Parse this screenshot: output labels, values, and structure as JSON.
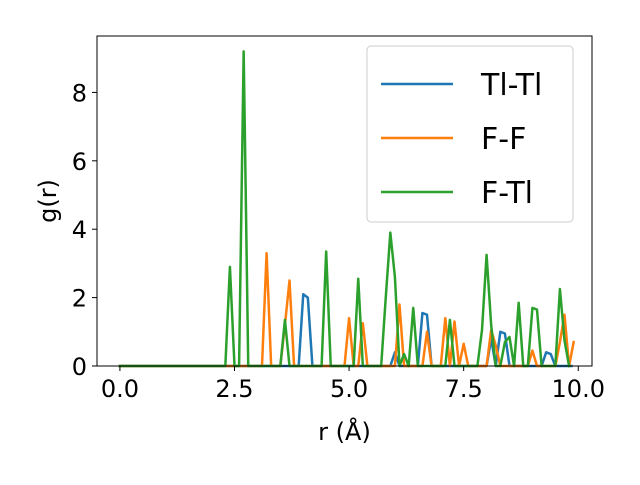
{
  "chart_data": {
    "type": "line",
    "title": "",
    "xlabel": "r (Å)",
    "ylabel": "g(r)",
    "xlim": [
      -0.5,
      10.3
    ],
    "ylim": [
      0,
      9.65
    ],
    "xticks": [
      0.0,
      2.5,
      5.0,
      7.5,
      10.0
    ],
    "xtick_labels": [
      "0.0",
      "2.5",
      "5.0",
      "7.5",
      "10.0"
    ],
    "yticks": [
      0,
      2,
      4,
      6,
      8
    ],
    "ytick_labels": [
      "0",
      "2",
      "4",
      "6",
      "8"
    ],
    "grid": false,
    "legend_position": "top-right",
    "series": [
      {
        "name": "Tl-Tl",
        "color": "#1f77b4",
        "x": [
          0.0,
          3.9,
          4.0,
          4.1,
          4.2,
          4.3,
          5.9,
          6.0,
          6.1,
          6.2,
          6.5,
          6.6,
          6.7,
          6.8,
          8.0,
          8.1,
          8.2,
          8.3,
          8.4,
          8.5,
          8.6,
          8.7,
          9.1,
          9.2,
          9.3,
          9.4,
          9.5,
          9.6,
          9.7,
          9.85
        ],
        "y": [
          0,
          0,
          2.1,
          2.0,
          0,
          0,
          0,
          0.4,
          0,
          0,
          0,
          1.55,
          1.5,
          0,
          0,
          0.8,
          0,
          1.0,
          0.95,
          0,
          0,
          0,
          0,
          0,
          0.4,
          0.35,
          0,
          0,
          0,
          0
        ]
      },
      {
        "name": "F-F",
        "color": "#ff7f0e",
        "x": [
          0.0,
          3.1,
          3.2,
          3.3,
          3.5,
          3.6,
          3.7,
          3.8,
          4.9,
          5.0,
          5.1,
          5.2,
          5.3,
          5.4,
          6.0,
          6.1,
          6.2,
          6.6,
          6.7,
          6.8,
          7.0,
          7.1,
          7.2,
          7.3,
          7.4,
          7.5,
          7.6,
          8.0,
          8.1,
          8.2,
          8.3,
          8.9,
          9.0,
          9.1,
          9.5,
          9.6,
          9.7,
          9.8,
          9.9
        ],
        "y": [
          0,
          0,
          3.3,
          0,
          0,
          1.2,
          2.5,
          0,
          0,
          1.4,
          0,
          0,
          1.25,
          0,
          0,
          1.8,
          0,
          0,
          1.0,
          0,
          0,
          1.4,
          0,
          1.3,
          0,
          0.65,
          0,
          0,
          1.05,
          0.6,
          0,
          0,
          0.45,
          0,
          0,
          0.7,
          1.5,
          0,
          0.7
        ]
      },
      {
        "name": "F-Tl",
        "color": "#2ca02c",
        "x": [
          0.0,
          2.3,
          2.4,
          2.5,
          2.6,
          2.7,
          2.8,
          3.5,
          3.6,
          3.7,
          3.8,
          4.4,
          4.5,
          4.6,
          5.1,
          5.2,
          5.3,
          5.7,
          5.8,
          5.9,
          6.0,
          6.1,
          6.2,
          6.3,
          6.4,
          6.5,
          7.0,
          7.1,
          7.2,
          7.3,
          7.8,
          7.9,
          8.0,
          8.1,
          8.2,
          8.3,
          8.4,
          8.5,
          8.6,
          8.7,
          8.8,
          8.9,
          9.0,
          9.1,
          9.2,
          9.5,
          9.6,
          9.7,
          9.8
        ],
        "y": [
          0,
          0,
          2.9,
          0,
          0,
          9.2,
          0,
          0,
          1.35,
          0,
          0,
          0,
          3.35,
          0,
          0,
          2.55,
          0,
          0,
          2.0,
          3.9,
          2.6,
          0,
          0.35,
          0,
          1.7,
          0,
          0,
          0,
          1.35,
          0,
          0,
          1.05,
          3.25,
          1.2,
          0,
          0,
          0.7,
          0.85,
          0,
          1.85,
          0,
          0,
          1.7,
          1.65,
          0,
          0,
          2.25,
          0.75,
          0
        ]
      }
    ]
  }
}
